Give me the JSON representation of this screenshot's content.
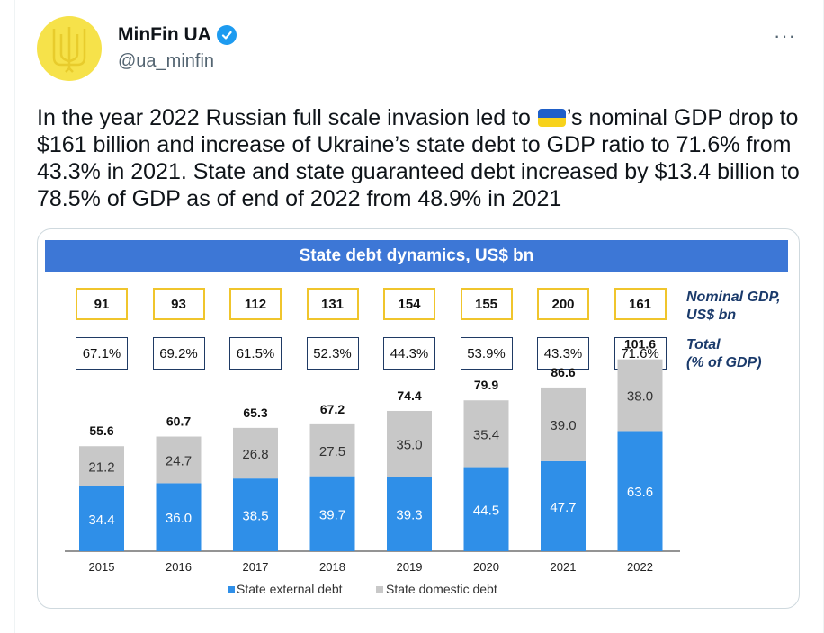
{
  "author": {
    "name": "MinFin UA",
    "handle": "@ua_minfin",
    "verified_icon": "verified-badge-icon",
    "avatar_icon": "ukraine-trident-icon"
  },
  "more_label": "···",
  "tweet": {
    "text_before_flag": "In the year 2022 Russian full scale invasion led to ",
    "flag_icon": "ukraine-flag-emoji",
    "text_after_flag": "’s nominal GDP drop to $161 billion and increase of Ukraine’s state debt to GDP ratio to 71.6% from 43.3% in 2021. State and state guaranteed debt increased by $13.4 billion to 78.5% of GDP as of end of 2022 from 48.9% in 2021"
  },
  "chart_labels": {
    "gdp_label_line1": "Nominal GDP,",
    "gdp_label_line2": "US$ bn",
    "pct_label_line1": "Total",
    "pct_label_line2": "(% of GDP)"
  },
  "colors": {
    "external": "#2f8fe8",
    "domestic": "#c8c8c8",
    "title_bar": "#3d77d6",
    "gdp_border": "#f0c52c",
    "pct_border": "#1f3a64"
  },
  "chart_data": {
    "type": "bar",
    "stacked": true,
    "title": "State debt dynamics, US$ bn",
    "categories": [
      "2015",
      "2016",
      "2017",
      "2018",
      "2019",
      "2020",
      "2021",
      "2022"
    ],
    "series": [
      {
        "name": "State external debt",
        "values": [
          34.4,
          36.0,
          38.5,
          39.7,
          39.3,
          44.5,
          47.7,
          63.6
        ]
      },
      {
        "name": "State domestic debt",
        "values": [
          21.2,
          24.7,
          26.8,
          27.5,
          35.0,
          35.4,
          39.0,
          38.0
        ]
      }
    ],
    "totals": [
      55.6,
      60.7,
      65.3,
      67.2,
      74.4,
      79.9,
      86.6,
      101.6
    ],
    "gdp_usd_bn": [
      91,
      93,
      112,
      131,
      154,
      155,
      200,
      161
    ],
    "debt_pct_gdp": [
      "67.1%",
      "69.2%",
      "61.5%",
      "52.3%",
      "44.3%",
      "53.9%",
      "43.3%",
      "71.6%"
    ],
    "legend_position": "bottom",
    "grid": false,
    "ylim": [
      0,
      105
    ]
  }
}
